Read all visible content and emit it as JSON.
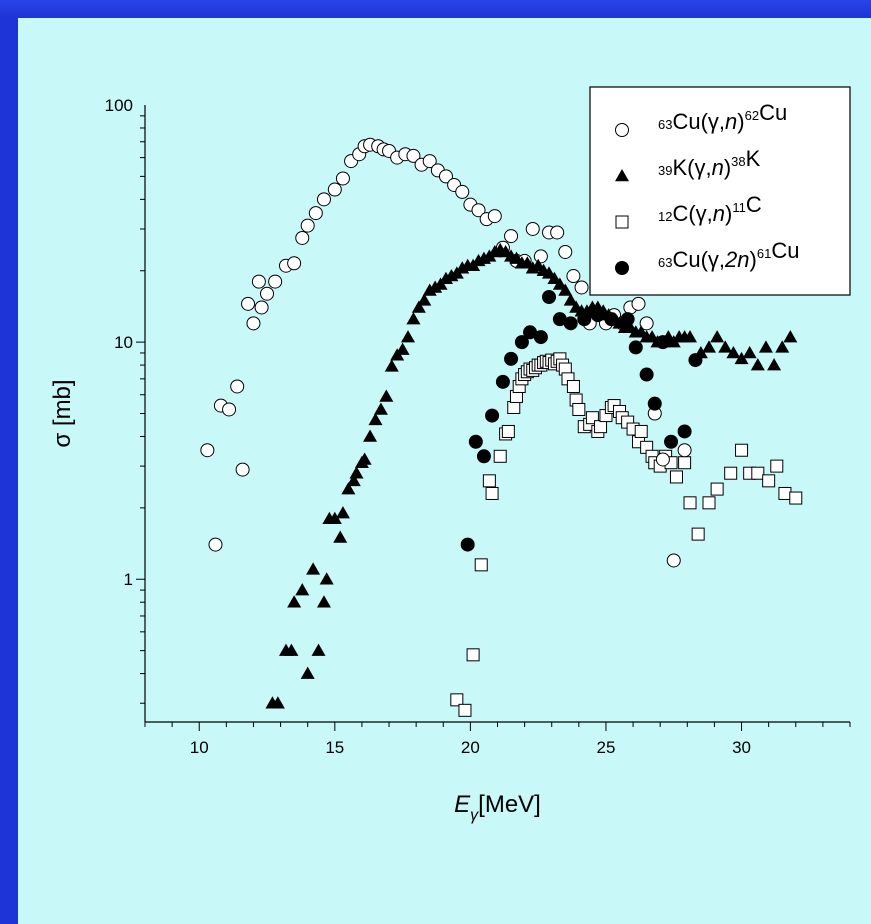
{
  "chart_data": {
    "type": "scatter",
    "title": "",
    "xlabel": "E_γ [MeV]",
    "xlabel_main": "E",
    "xlabel_sub": "γ",
    "xlabel_unit": "[MeV]",
    "ylabel": "σ [mb]",
    "xlim": [
      8,
      34
    ],
    "ylim": [
      0.25,
      100
    ],
    "yscale": "log",
    "xticks": [
      10,
      15,
      20,
      25,
      30
    ],
    "xtick_labels": [
      "10",
      "15",
      "20",
      "25",
      "30"
    ],
    "yticks": [
      1,
      10,
      100
    ],
    "ytick_labels": [
      "1",
      "10",
      "100"
    ],
    "legend_position": "top-right",
    "series": [
      {
        "name": "63Cu(γ,n)62Cu",
        "marker": "open-circle",
        "legend_parts": [
          "63",
          "Cu(γ,",
          "n",
          ")",
          "62",
          "Cu"
        ],
        "points": [
          [
            10.3,
            3.5
          ],
          [
            10.6,
            1.4
          ],
          [
            10.8,
            5.4
          ],
          [
            11.1,
            5.2
          ],
          [
            11.4,
            6.5
          ],
          [
            11.6,
            2.9
          ],
          [
            11.8,
            14.5
          ],
          [
            12.0,
            12.0
          ],
          [
            12.2,
            18.0
          ],
          [
            12.3,
            14.0
          ],
          [
            12.5,
            16.0
          ],
          [
            12.8,
            18.0
          ],
          [
            13.2,
            21.0
          ],
          [
            13.5,
            21.5
          ],
          [
            13.8,
            27.5
          ],
          [
            14.0,
            31.0
          ],
          [
            14.3,
            35.0
          ],
          [
            14.6,
            40.0
          ],
          [
            15.0,
            44.0
          ],
          [
            15.3,
            49.0
          ],
          [
            15.6,
            58.0
          ],
          [
            15.9,
            62.0
          ],
          [
            16.1,
            67.0
          ],
          [
            16.3,
            68.0
          ],
          [
            16.6,
            67.0
          ],
          [
            16.8,
            65.0
          ],
          [
            17.0,
            64.0
          ],
          [
            17.3,
            60.0
          ],
          [
            17.6,
            62.0
          ],
          [
            17.9,
            61.0
          ],
          [
            18.2,
            56.0
          ],
          [
            18.5,
            58.0
          ],
          [
            18.8,
            53.0
          ],
          [
            19.1,
            50.0
          ],
          [
            19.4,
            46.0
          ],
          [
            19.7,
            43.0
          ],
          [
            20.0,
            38.0
          ],
          [
            20.3,
            36.0
          ],
          [
            20.6,
            33.0
          ],
          [
            20.9,
            34.0
          ],
          [
            21.2,
            25.0
          ],
          [
            21.5,
            28.0
          ],
          [
            21.7,
            22.0
          ],
          [
            22.0,
            22.0
          ],
          [
            22.3,
            30.0
          ],
          [
            22.6,
            23.0
          ],
          [
            22.9,
            29.0
          ],
          [
            23.2,
            29.0
          ],
          [
            23.5,
            24.0
          ],
          [
            23.8,
            19.0
          ],
          [
            24.1,
            17.0
          ],
          [
            24.4,
            12.0
          ],
          [
            24.7,
            13.0
          ],
          [
            25.0,
            12.0
          ],
          [
            25.3,
            13.0
          ],
          [
            25.6,
            12.0
          ],
          [
            25.9,
            14.0
          ],
          [
            26.2,
            14.5
          ],
          [
            26.5,
            12.0
          ],
          [
            26.8,
            5.0
          ],
          [
            27.1,
            3.2
          ],
          [
            27.5,
            1.2
          ],
          [
            27.9,
            3.5
          ]
        ]
      },
      {
        "name": "39K(γ,n)38K",
        "marker": "filled-triangle",
        "legend_parts": [
          "39",
          "K(γ,",
          "n",
          ")",
          "38",
          "K"
        ],
        "points": [
          [
            12.7,
            0.3
          ],
          [
            12.9,
            0.3
          ],
          [
            13.2,
            0.5
          ],
          [
            13.4,
            0.5
          ],
          [
            13.5,
            0.8
          ],
          [
            13.8,
            0.9
          ],
          [
            14.0,
            0.4
          ],
          [
            14.2,
            1.1
          ],
          [
            14.4,
            0.5
          ],
          [
            14.6,
            0.8
          ],
          [
            14.7,
            1.0
          ],
          [
            14.8,
            1.8
          ],
          [
            15.0,
            1.8
          ],
          [
            15.2,
            1.5
          ],
          [
            15.3,
            1.9
          ],
          [
            15.5,
            2.4
          ],
          [
            15.7,
            2.6
          ],
          [
            15.8,
            2.8
          ],
          [
            16.0,
            3.1
          ],
          [
            16.1,
            3.2
          ],
          [
            16.3,
            4.0
          ],
          [
            16.5,
            4.7
          ],
          [
            16.7,
            5.2
          ],
          [
            16.9,
            5.9
          ],
          [
            17.1,
            7.9
          ],
          [
            17.3,
            8.8
          ],
          [
            17.5,
            9.3
          ],
          [
            17.7,
            10.5
          ],
          [
            17.9,
            12.5
          ],
          [
            18.1,
            14.0
          ],
          [
            18.3,
            15.0
          ],
          [
            18.5,
            16.5
          ],
          [
            18.7,
            17.0
          ],
          [
            18.9,
            17.5
          ],
          [
            19.1,
            18.5
          ],
          [
            19.3,
            19.0
          ],
          [
            19.5,
            19.5
          ],
          [
            19.7,
            20.5
          ],
          [
            19.9,
            21.0
          ],
          [
            20.1,
            21.0
          ],
          [
            20.3,
            22.0
          ],
          [
            20.5,
            22.5
          ],
          [
            20.7,
            23.0
          ],
          [
            20.9,
            24.0
          ],
          [
            21.1,
            24.5
          ],
          [
            21.3,
            24.0
          ],
          [
            21.5,
            23.0
          ],
          [
            21.7,
            22.5
          ],
          [
            21.9,
            21.5
          ],
          [
            22.1,
            21.5
          ],
          [
            22.3,
            20.5
          ],
          [
            22.5,
            21.0
          ],
          [
            22.7,
            20.0
          ],
          [
            22.9,
            19.5
          ],
          [
            23.1,
            18.5
          ],
          [
            23.3,
            17.5
          ],
          [
            23.5,
            16.5
          ],
          [
            23.7,
            15.0
          ],
          [
            23.9,
            14.0
          ],
          [
            24.1,
            13.5
          ],
          [
            24.3,
            13.5
          ],
          [
            24.5,
            14.0
          ],
          [
            24.7,
            14.0
          ],
          [
            24.9,
            13.5
          ],
          [
            25.1,
            13.0
          ],
          [
            25.3,
            12.5
          ],
          [
            25.5,
            12.0
          ],
          [
            25.7,
            11.5
          ],
          [
            25.9,
            11.5
          ],
          [
            26.1,
            11.0
          ],
          [
            26.3,
            11.0
          ],
          [
            26.5,
            10.5
          ],
          [
            26.7,
            10.5
          ],
          [
            26.9,
            10.0
          ],
          [
            27.1,
            10.0
          ],
          [
            27.3,
            10.5
          ],
          [
            27.5,
            10.0
          ],
          [
            27.7,
            10.5
          ],
          [
            27.9,
            10.5
          ],
          [
            28.1,
            10.5
          ],
          [
            28.5,
            9.0
          ],
          [
            28.8,
            9.5
          ],
          [
            29.1,
            10.5
          ],
          [
            29.4,
            9.5
          ],
          [
            29.7,
            9.0
          ],
          [
            30.0,
            8.5
          ],
          [
            30.3,
            9.0
          ],
          [
            30.6,
            8.0
          ],
          [
            30.9,
            9.5
          ],
          [
            31.2,
            8.0
          ],
          [
            31.5,
            9.5
          ],
          [
            31.8,
            10.5
          ]
        ]
      },
      {
        "name": "12C(γ,n)11C",
        "marker": "open-square",
        "legend_parts": [
          "12",
          "C(γ,",
          "n",
          ")",
          "11",
          "C"
        ],
        "points": [
          [
            19.5,
            0.31
          ],
          [
            19.8,
            0.28
          ],
          [
            20.1,
            0.48
          ],
          [
            20.4,
            1.15
          ],
          [
            20.7,
            2.6
          ],
          [
            20.8,
            2.3
          ],
          [
            21.1,
            3.3
          ],
          [
            21.3,
            4.1
          ],
          [
            21.4,
            4.2
          ],
          [
            21.6,
            5.3
          ],
          [
            21.7,
            5.9
          ],
          [
            21.8,
            6.5
          ],
          [
            21.9,
            7.0
          ],
          [
            22.0,
            7.3
          ],
          [
            22.1,
            7.5
          ],
          [
            22.2,
            7.7
          ],
          [
            22.3,
            7.6
          ],
          [
            22.4,
            7.8
          ],
          [
            22.5,
            8.0
          ],
          [
            22.6,
            8.0
          ],
          [
            22.7,
            8.2
          ],
          [
            22.8,
            8.3
          ],
          [
            22.9,
            8.2
          ],
          [
            23.0,
            8.4
          ],
          [
            23.1,
            8.1
          ],
          [
            23.2,
            8.3
          ],
          [
            23.3,
            8.5
          ],
          [
            23.4,
            8.0
          ],
          [
            23.5,
            7.7
          ],
          [
            23.6,
            7.0
          ],
          [
            23.8,
            6.5
          ],
          [
            23.9,
            5.7
          ],
          [
            24.0,
            5.2
          ],
          [
            24.2,
            4.4
          ],
          [
            24.4,
            4.5
          ],
          [
            24.5,
            4.8
          ],
          [
            24.7,
            4.2
          ],
          [
            24.8,
            4.4
          ],
          [
            25.0,
            4.9
          ],
          [
            25.2,
            5.3
          ],
          [
            25.3,
            5.4
          ],
          [
            25.5,
            5.1
          ],
          [
            25.6,
            4.8
          ],
          [
            25.8,
            4.6
          ],
          [
            26.0,
            4.3
          ],
          [
            26.2,
            3.8
          ],
          [
            26.3,
            4.2
          ],
          [
            26.5,
            3.6
          ],
          [
            26.7,
            3.3
          ],
          [
            26.8,
            3.1
          ],
          [
            27.0,
            3.0
          ],
          [
            27.2,
            3.3
          ],
          [
            27.4,
            3.1
          ],
          [
            27.6,
            2.7
          ],
          [
            27.9,
            3.1
          ],
          [
            28.1,
            2.1
          ],
          [
            28.4,
            1.55
          ],
          [
            28.8,
            2.1
          ],
          [
            29.1,
            2.4
          ],
          [
            29.6,
            2.8
          ],
          [
            30.0,
            3.5
          ],
          [
            30.3,
            2.8
          ],
          [
            30.6,
            2.8
          ],
          [
            31.0,
            2.6
          ],
          [
            31.3,
            3.0
          ],
          [
            31.6,
            2.3
          ],
          [
            32.0,
            2.2
          ]
        ]
      },
      {
        "name": "63Cu(γ,2n)61Cu",
        "marker": "filled-circle",
        "legend_parts": [
          "63",
          "Cu(γ,",
          "2n",
          ")",
          "61",
          "Cu"
        ],
        "points": [
          [
            19.9,
            1.4
          ],
          [
            20.2,
            3.8
          ],
          [
            20.5,
            3.3
          ],
          [
            20.8,
            4.9
          ],
          [
            21.2,
            6.8
          ],
          [
            21.5,
            8.5
          ],
          [
            21.9,
            10.0
          ],
          [
            22.2,
            11.0
          ],
          [
            22.6,
            10.5
          ],
          [
            22.9,
            15.5
          ],
          [
            23.3,
            12.5
          ],
          [
            23.7,
            12.0
          ],
          [
            24.2,
            12.5
          ],
          [
            24.7,
            13.0
          ],
          [
            25.2,
            12.5
          ],
          [
            25.8,
            12.5
          ],
          [
            26.1,
            9.5
          ],
          [
            26.5,
            7.3
          ],
          [
            26.8,
            5.5
          ],
          [
            27.1,
            10.0
          ],
          [
            27.4,
            3.8
          ],
          [
            27.9,
            4.2
          ],
          [
            28.3,
            8.4
          ]
        ]
      }
    ]
  }
}
